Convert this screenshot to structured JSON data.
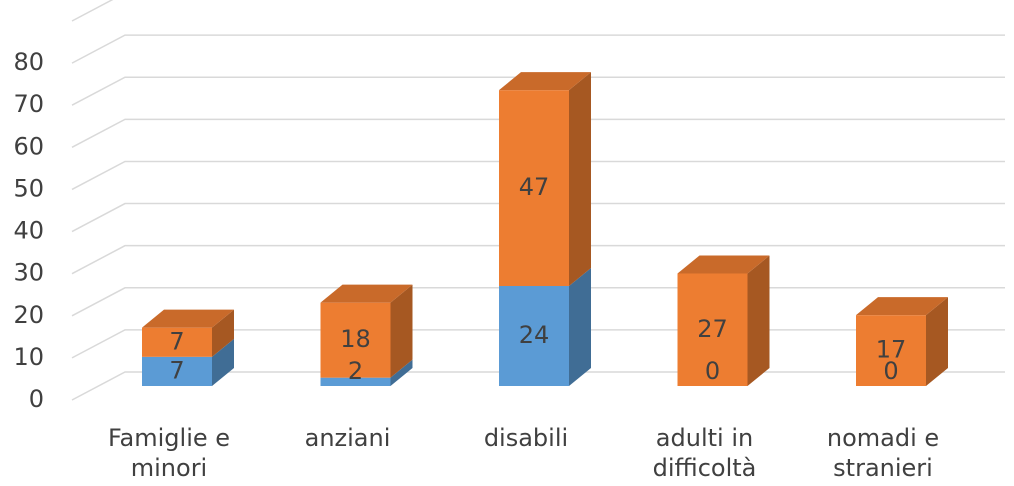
{
  "chart_data": {
    "type": "bar3d_stacked",
    "categories": [
      "Famiglie e minori",
      "anziani",
      "disabili",
      "adulti in difficoltà",
      "nomadi e stranieri"
    ],
    "series": [
      {
        "color": "#5b9bd5",
        "values": [
          7,
          2,
          24,
          0,
          0
        ]
      },
      {
        "color": "#ed7d31",
        "values": [
          7,
          18,
          47,
          27,
          17
        ]
      }
    ],
    "ylim": [
      0,
      90
    ],
    "yticks": [
      0,
      10,
      20,
      30,
      40,
      50,
      60,
      70,
      80
    ],
    "grid": true
  }
}
